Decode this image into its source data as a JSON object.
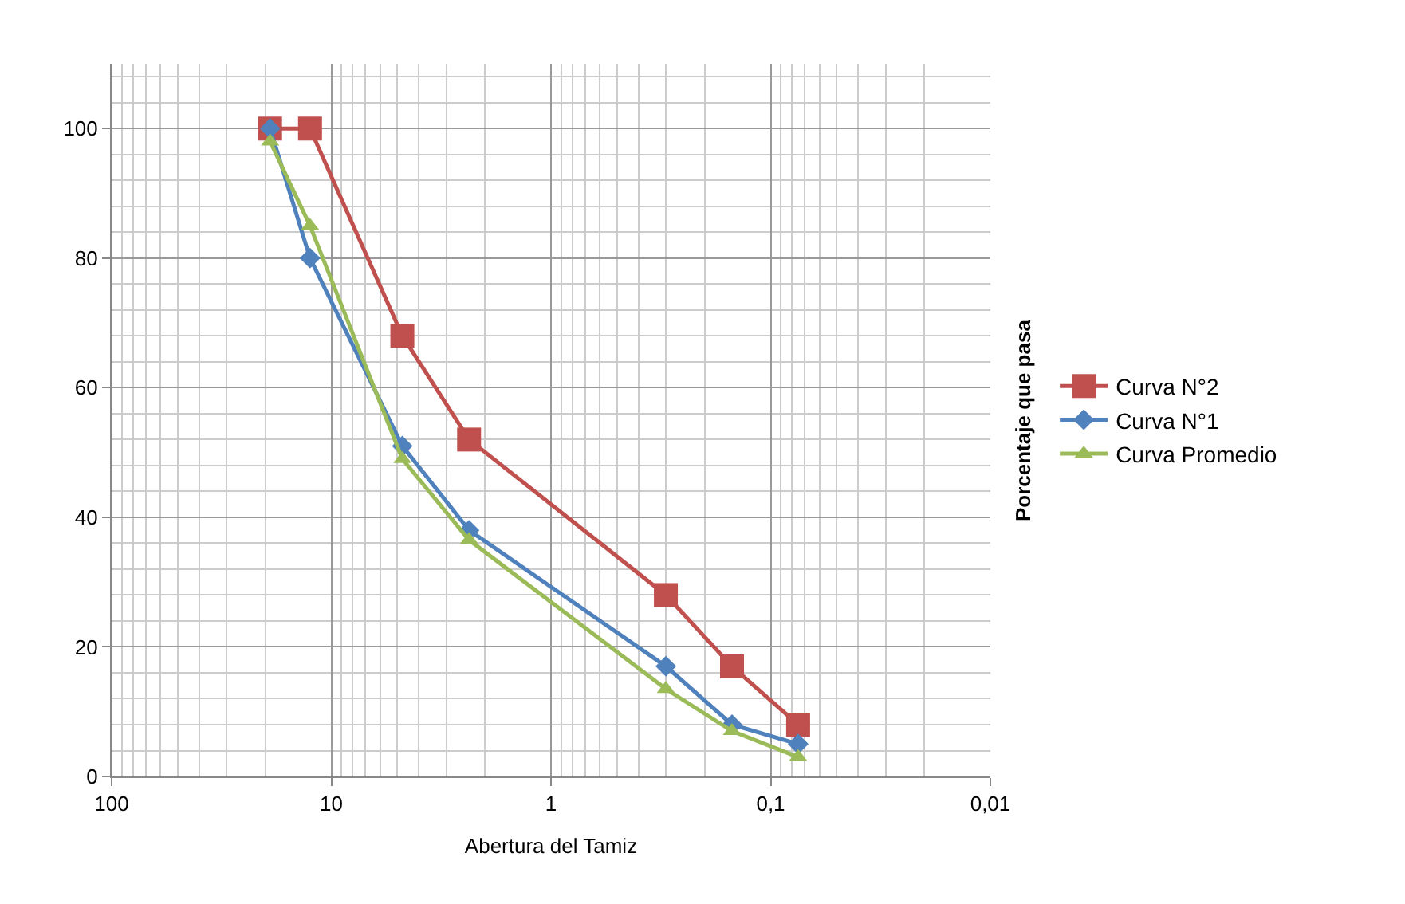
{
  "chart_data": {
    "type": "line",
    "xlabel": "Abertura del Tamiz",
    "ylabel": "Porcentaje que pasa",
    "log": "x",
    "x": [
      19,
      12.5,
      4.75,
      2.36,
      0.3,
      0.15,
      0.075
    ],
    "xlim": [
      100,
      0.01
    ],
    "xticks": [
      {
        "value": 100,
        "label": "100"
      },
      {
        "value": 10,
        "label": "10"
      },
      {
        "value": 1,
        "label": "1"
      },
      {
        "value": 0.1,
        "label": "0,1"
      },
      {
        "value": 0.01,
        "label": "0,01"
      }
    ],
    "ylim": [
      0,
      110
    ],
    "yticks": [
      0,
      20,
      40,
      60,
      80,
      100
    ],
    "grid": true,
    "legend": "right",
    "line_style": "solid",
    "series": [
      {
        "name": "Curva N°2",
        "color": "#c0504d",
        "marker": "square",
        "values": [
          100,
          100,
          68,
          52,
          28,
          17,
          8
        ]
      },
      {
        "name": "Curva N°1",
        "color": "#4f81bd",
        "marker": "diamond",
        "values": [
          100,
          80,
          51,
          38,
          17,
          8,
          5
        ]
      },
      {
        "name": "Curva Promedio",
        "color": "#9bbb59",
        "marker": "triangle",
        "values": [
          98,
          85,
          49,
          36.5,
          13.5,
          7,
          3
        ]
      }
    ]
  }
}
